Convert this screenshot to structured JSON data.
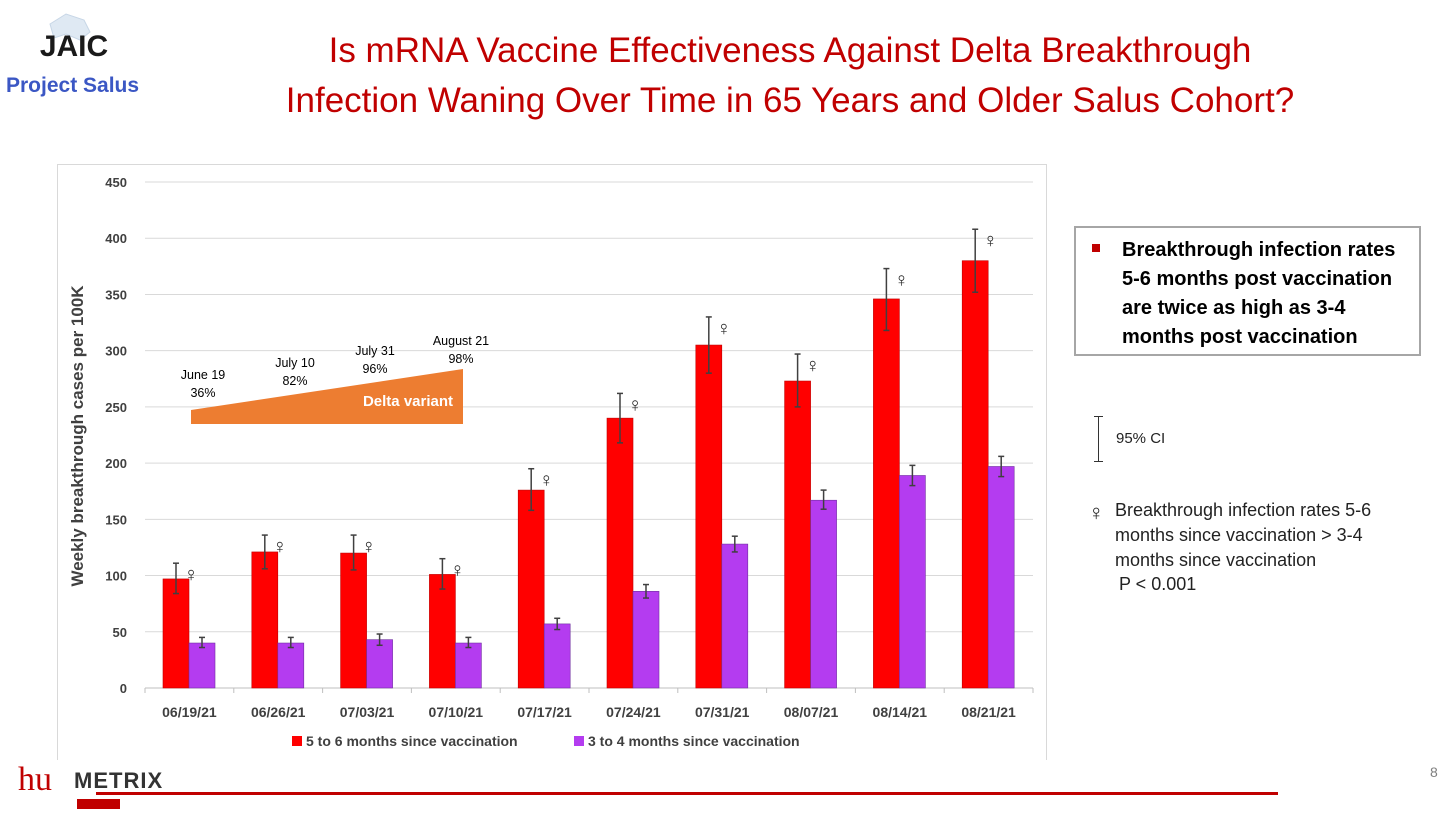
{
  "slide": {
    "title_line1": "Is mRNA Vaccine Effectiveness Against Delta Breakthrough",
    "title_line2": "Infection Waning Over Time in 65 Years and Older Salus Cohort?",
    "logo_text": "JAIC",
    "project_label": "Project Salus",
    "footer_logo_hu": "hu",
    "footer_logo_metrix": "METRIX",
    "page_number": "8"
  },
  "colors": {
    "title": "#c00000",
    "series1": "#ff0000",
    "series2": "#b43cf0",
    "delta_arrow": "#ed7d31",
    "project_label": "#3b57c4"
  },
  "callout": {
    "text": "Breakthrough infection rates 5-6 months post vaccination are twice as high as 3-4 months post vaccination"
  },
  "ci_legend": {
    "label": "95% CI"
  },
  "significance_legend": {
    "symbol": "♀",
    "text": "Breakthrough infection rates 5-6 months since vaccination > 3-4 months since vaccination",
    "p_value": "P < 0.001"
  },
  "chart_data": {
    "type": "bar",
    "ylabel": "Weekly breakthrough cases per 100K",
    "ylim": [
      0,
      450
    ],
    "yticks": [
      0,
      50,
      100,
      150,
      200,
      250,
      300,
      350,
      400,
      450
    ],
    "categories": [
      "06/19/21",
      "06/26/21",
      "07/03/21",
      "07/10/21",
      "07/17/21",
      "07/24/21",
      "07/31/21",
      "08/07/21",
      "08/14/21",
      "08/21/21"
    ],
    "series": [
      {
        "name": "5 to 6 months since vaccination",
        "color": "#ff0000",
        "values": [
          97,
          121,
          120,
          101,
          176,
          240,
          305,
          273,
          346,
          380
        ],
        "ci_low": [
          84,
          106,
          105,
          88,
          158,
          218,
          280,
          250,
          318,
          352
        ],
        "ci_high": [
          111,
          136,
          136,
          115,
          195,
          262,
          330,
          297,
          373,
          408
        ],
        "significant": [
          true,
          true,
          true,
          true,
          true,
          true,
          true,
          true,
          true,
          true
        ]
      },
      {
        "name": "3 to 4 months since vaccination",
        "color": "#b43cf0",
        "values": [
          40,
          40,
          43,
          40,
          57,
          86,
          128,
          167,
          189,
          197
        ],
        "ci_low": [
          36,
          36,
          38,
          36,
          52,
          80,
          121,
          159,
          180,
          188
        ],
        "ci_high": [
          45,
          45,
          48,
          45,
          62,
          92,
          135,
          176,
          198,
          206
        ]
      }
    ],
    "annotation": {
      "label": "Delta variant",
      "points": [
        {
          "date": "June 19",
          "pct": "36%"
        },
        {
          "date": "July 10",
          "pct": "82%"
        },
        {
          "date": "July 31",
          "pct": "96%"
        },
        {
          "date": "August 21",
          "pct": "98%"
        }
      ]
    },
    "grid": true,
    "legend_position": "bottom"
  }
}
